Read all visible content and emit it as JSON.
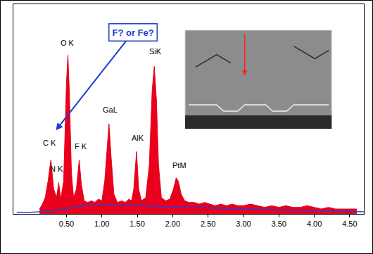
{
  "chart_data": {
    "type": "area",
    "xlim": [
      -0.25,
      4.7
    ],
    "ylim": [
      0,
      128
    ],
    "xticks": [
      {
        "value": 0.5,
        "label": "0.50"
      },
      {
        "value": 1.0,
        "label": "1.00"
      },
      {
        "value": 1.5,
        "label": "1.50"
      },
      {
        "value": 2.0,
        "label": "2.00"
      },
      {
        "value": 2.5,
        "label": "2.50"
      },
      {
        "value": 3.0,
        "label": "3.00"
      },
      {
        "value": 3.5,
        "label": "3.50"
      },
      {
        "value": 4.0,
        "label": "4.00"
      },
      {
        "value": 4.5,
        "label": "4.50"
      }
    ],
    "tick_labels": "x",
    "grid": false,
    "series": [
      {
        "type": "area",
        "color": "#e8001c",
        "x": [
          0.12,
          0.16,
          0.2,
          0.24,
          0.28,
          0.32,
          0.36,
          0.39,
          0.42,
          0.46,
          0.5,
          0.52,
          0.54,
          0.57,
          0.6,
          0.64,
          0.68,
          0.71,
          0.75,
          0.8,
          0.85,
          0.9,
          0.95,
          1.0,
          1.04,
          1.08,
          1.1,
          1.13,
          1.17,
          1.22,
          1.28,
          1.33,
          1.38,
          1.42,
          1.45,
          1.49,
          1.52,
          1.56,
          1.62,
          1.67,
          1.71,
          1.74,
          1.77,
          1.8,
          1.84,
          1.9,
          1.96,
          2.01,
          2.05,
          2.08,
          2.12,
          2.17,
          2.23,
          2.3,
          2.38,
          2.45,
          2.52,
          2.6,
          2.68,
          2.76,
          2.84,
          2.92,
          3.0,
          3.1,
          3.2,
          3.3,
          3.4,
          3.5,
          3.6,
          3.7,
          3.8,
          3.9,
          4.0,
          4.1,
          4.2,
          4.3,
          4.4,
          4.5,
          4.6
        ],
        "values": [
          3,
          6,
          10,
          20,
          33,
          15,
          10,
          19,
          9,
          20,
          80,
          97,
          75,
          25,
          10,
          15,
          33,
          18,
          8,
          7,
          8,
          7,
          9,
          8,
          20,
          45,
          55,
          35,
          12,
          7,
          8,
          7,
          9,
          8,
          15,
          38,
          15,
          8,
          10,
          30,
          75,
          90,
          70,
          30,
          10,
          8,
          9,
          15,
          22,
          20,
          12,
          8,
          7,
          7,
          6,
          7,
          6,
          5,
          6,
          5,
          6,
          5,
          5,
          6,
          5,
          4,
          5,
          4,
          5,
          4,
          4,
          5,
          4,
          3,
          4,
          3,
          3,
          3,
          3
        ]
      },
      {
        "type": "line",
        "color": "#2b3fd6",
        "x": [
          -0.2,
          0.0,
          0.2,
          0.4,
          0.6,
          0.8,
          1.0,
          1.5,
          2.0,
          2.5,
          3.0,
          3.5,
          4.0,
          4.5,
          4.7
        ],
        "values": [
          1,
          1,
          1.5,
          2.5,
          4,
          5,
          5.3,
          5,
          4.3,
          3.6,
          3,
          2.4,
          1.9,
          1.5,
          1.3
        ]
      }
    ],
    "peak_labels": [
      {
        "text": "C K",
        "x": 0.26,
        "y": 40
      },
      {
        "text": "N K",
        "x": 0.36,
        "y": 24
      },
      {
        "text": "O K",
        "x": 0.52,
        "y": 101
      },
      {
        "text": "F K",
        "x": 0.7,
        "y": 38
      },
      {
        "text": "GaL",
        "x": 1.12,
        "y": 60
      },
      {
        "text": "AlK",
        "x": 1.51,
        "y": 43
      },
      {
        "text": "SiK",
        "x": 1.76,
        "y": 96
      },
      {
        "text": "PtM",
        "x": 2.1,
        "y": 26
      }
    ],
    "callout": {
      "text": "F? or Fe?",
      "x": 1.44,
      "y": 111,
      "arrow_x": 0.35,
      "arrow_y": 51,
      "color": "#1a3fd0"
    }
  }
}
